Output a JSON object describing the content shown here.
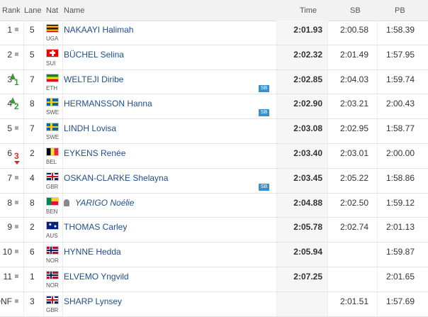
{
  "header": {
    "columns": [
      "Rank",
      "Lane",
      "Nat",
      "Name",
      "Time",
      "SB",
      "PB"
    ]
  },
  "rows": [
    {
      "rank": 1,
      "lane": 5,
      "nat": "UGA",
      "name": "NAKAAYI Halimah",
      "time": "2:01.93",
      "sb": "2:00.58",
      "pb": "1:58.39"
    },
    {
      "rank": 2,
      "lane": 5,
      "nat": "SUI",
      "name": "BÜCHEL Selina",
      "time": "2:02.32",
      "sb": "2:01.49",
      "pb": "1:57.95"
    },
    {
      "rank": 3,
      "rank_change": 1,
      "lane": 7,
      "nat": "ETH",
      "name": "WELTEJI Diribe",
      "time": "2:02.85",
      "badge": "SB",
      "sb": "2:04.03",
      "pb": "1:59.74"
    },
    {
      "rank": 4,
      "rank_change": 2,
      "lane": 8,
      "nat": "SWE",
      "name": "HERMANSSON Hanna",
      "time": "2:02.90",
      "badge": "SB",
      "sb": "2:03.21",
      "pb": "2:00.43"
    },
    {
      "rank": 5,
      "lane": 7,
      "nat": "SWE",
      "name": "LINDH Lovisa",
      "time": "2:03.08",
      "sb": "2:02.95",
      "pb": "1:58.77"
    },
    {
      "rank": 6,
      "rank_change": 3,
      "lane": 2,
      "nat": "BEL",
      "name": "EYKENS Renée",
      "time": "2:03.40",
      "sb": "2:03.01",
      "pb": "2:00.00"
    },
    {
      "rank": 7,
      "lane": 4,
      "nat": "GBR",
      "name": "OSKAN-CLARKE Shelayna",
      "time": "2:03.45",
      "badge": "SB",
      "sb": "2:05.22",
      "pb": "1:58.86"
    },
    {
      "rank": 8,
      "lane": 8,
      "nat": "BEN",
      "name": "YARIGO Noélie",
      "time": "2:04.88",
      "sb": "2:02.50",
      "pb": "1:59.12"
    },
    {
      "rank": 9,
      "lane": 2,
      "nat": "AUS",
      "name": "THOMAS Carley",
      "time": "2:05.78",
      "sb": "2:02.74",
      "pb": "2:01.13"
    },
    {
      "rank": 10,
      "lane": 6,
      "nat": "NOR",
      "name": "HYNNE Hedda",
      "time": "2:05.94",
      "pb": "1:59.87"
    },
    {
      "rank": 11,
      "lane": 1,
      "nat": "NOR",
      "name": "ELVEMO Yngvild",
      "time": "2:07.25",
      "pb": "2:01.65"
    },
    {
      "rank": "DNF",
      "lane": 3,
      "nat": "GBR",
      "name": "SHARP Lynsey",
      "sb": "2:01.51",
      "pb": "1:57.69"
    }
  ]
}
